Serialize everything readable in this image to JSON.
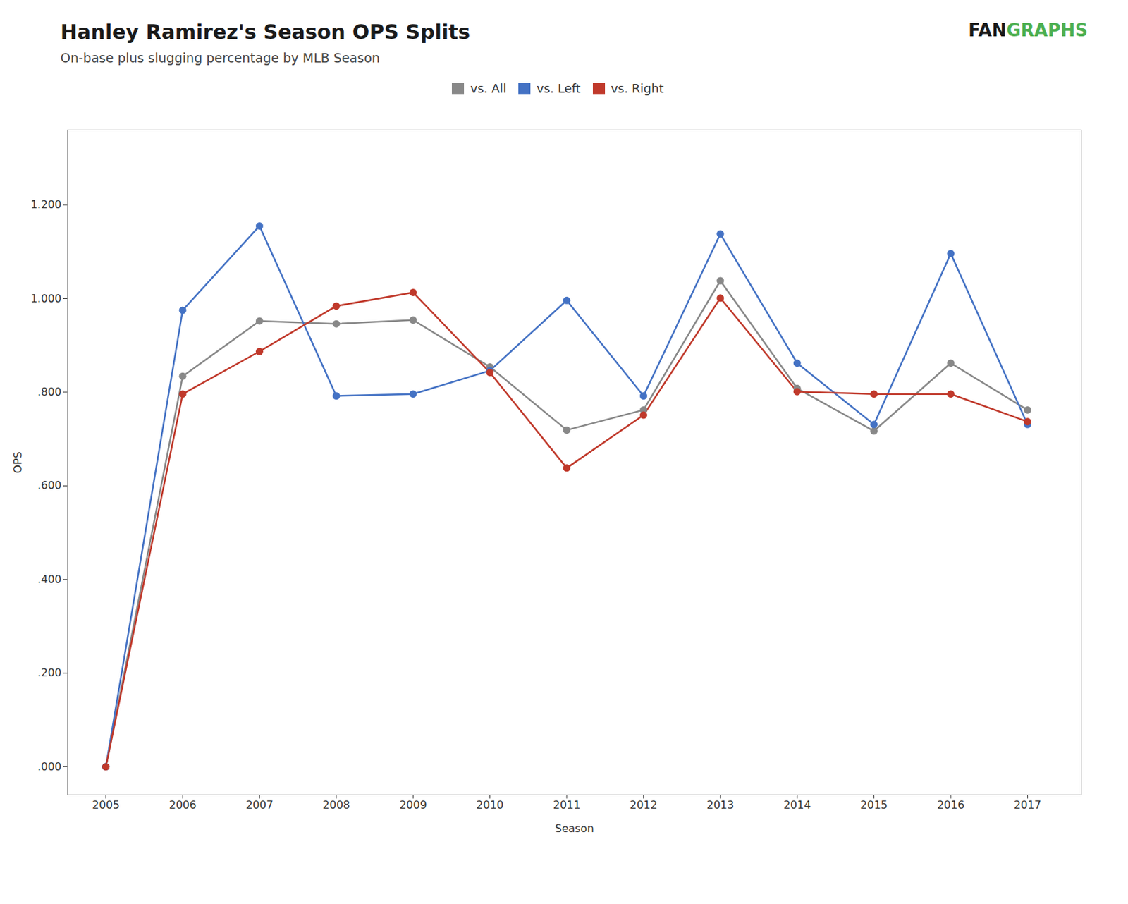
{
  "chart_data": {
    "type": "line",
    "title": "Hanley Ramirez's Season OPS Splits",
    "subtitle": "On-base plus slugging percentage by MLB Season",
    "xlabel": "Season",
    "ylabel": "OPS",
    "x": [
      2005,
      2006,
      2007,
      2008,
      2009,
      2010,
      2011,
      2012,
      2013,
      2014,
      2015,
      2016,
      2017
    ],
    "series": [
      {
        "name": "vs. All",
        "color": "#888888",
        "values": [
          0.0,
          0.834,
          0.952,
          0.946,
          0.954,
          0.854,
          0.719,
          0.762,
          1.038,
          0.808,
          0.717,
          0.862,
          0.762
        ]
      },
      {
        "name": "vs. Left",
        "color": "#4472C4",
        "values": [
          0.0,
          0.975,
          1.155,
          0.792,
          0.796,
          0.846,
          0.996,
          0.792,
          1.138,
          0.862,
          0.731,
          1.096,
          0.731
        ]
      },
      {
        "name": "vs. Right",
        "color": "#C0392B",
        "values": [
          0.0,
          0.796,
          0.887,
          0.984,
          1.013,
          0.842,
          0.638,
          0.751,
          1.001,
          0.801,
          0.796,
          0.796,
          0.737
        ]
      }
    ],
    "xlim": [
      2004.5,
      2017.7
    ],
    "xticks": [
      2005,
      2006,
      2007,
      2008,
      2009,
      2010,
      2011,
      2012,
      2013,
      2014,
      2015,
      2016,
      2017
    ],
    "ylim": [
      -0.06,
      1.36
    ],
    "yticks": [
      {
        "value": 0,
        "label": ".000"
      },
      {
        "value": 0.2,
        "label": ".200"
      },
      {
        "value": 0.4,
        "label": ".400"
      },
      {
        "value": 0.6,
        "label": ".600"
      },
      {
        "value": 0.8,
        "label": ".800"
      },
      {
        "value": 1,
        "label": "1.000"
      },
      {
        "value": 1.2,
        "label": "1.200"
      }
    ],
    "marker": "circle",
    "grid": false,
    "legend": "top",
    "annotations": [
      {
        "text": "FAN",
        "color": "#1a1a1a"
      },
      {
        "text": "GRAPHS",
        "color": "#4CAF50"
      }
    ]
  }
}
